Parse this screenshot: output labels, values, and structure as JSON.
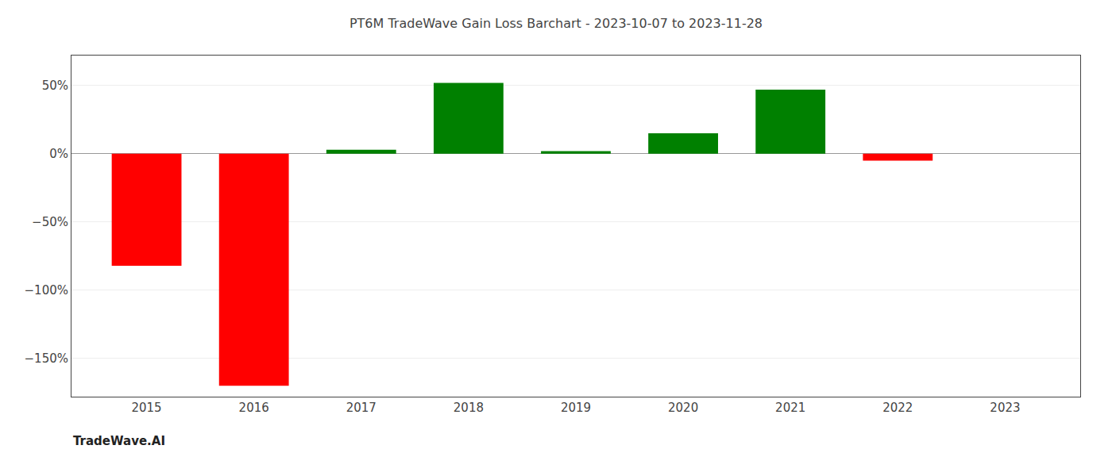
{
  "chart_data": {
    "type": "bar",
    "title": "PT6M TradeWave Gain Loss Barchart - 2023-10-07 to 2023-11-28",
    "annotations": [
      "TradeWave.AI"
    ],
    "x": [
      2015,
      2016,
      2017,
      2018,
      2019,
      2020,
      2021,
      2022,
      2023
    ],
    "values": [
      -82,
      -170,
      3,
      52,
      2,
      15,
      47,
      -5,
      null
    ],
    "colors": [
      "#ff0000",
      "#ff0000",
      "#008000",
      "#008000",
      "#008000",
      "#008000",
      "#008000",
      "#ff0000",
      null
    ],
    "xlim": [
      2014.3,
      2023.7
    ],
    "xticks": [
      2015,
      2016,
      2017,
      2018,
      2019,
      2020,
      2021,
      2022,
      2023
    ],
    "ylim": [
      -178,
      72
    ],
    "yticks": [
      {
        "value": 50,
        "label": "50%"
      },
      {
        "value": 0,
        "label": "0%"
      },
      {
        "value": -50,
        "label": "−50%"
      },
      {
        "value": -100,
        "label": "−100%"
      },
      {
        "value": -150,
        "label": "−150%"
      }
    ],
    "grid": true
  }
}
